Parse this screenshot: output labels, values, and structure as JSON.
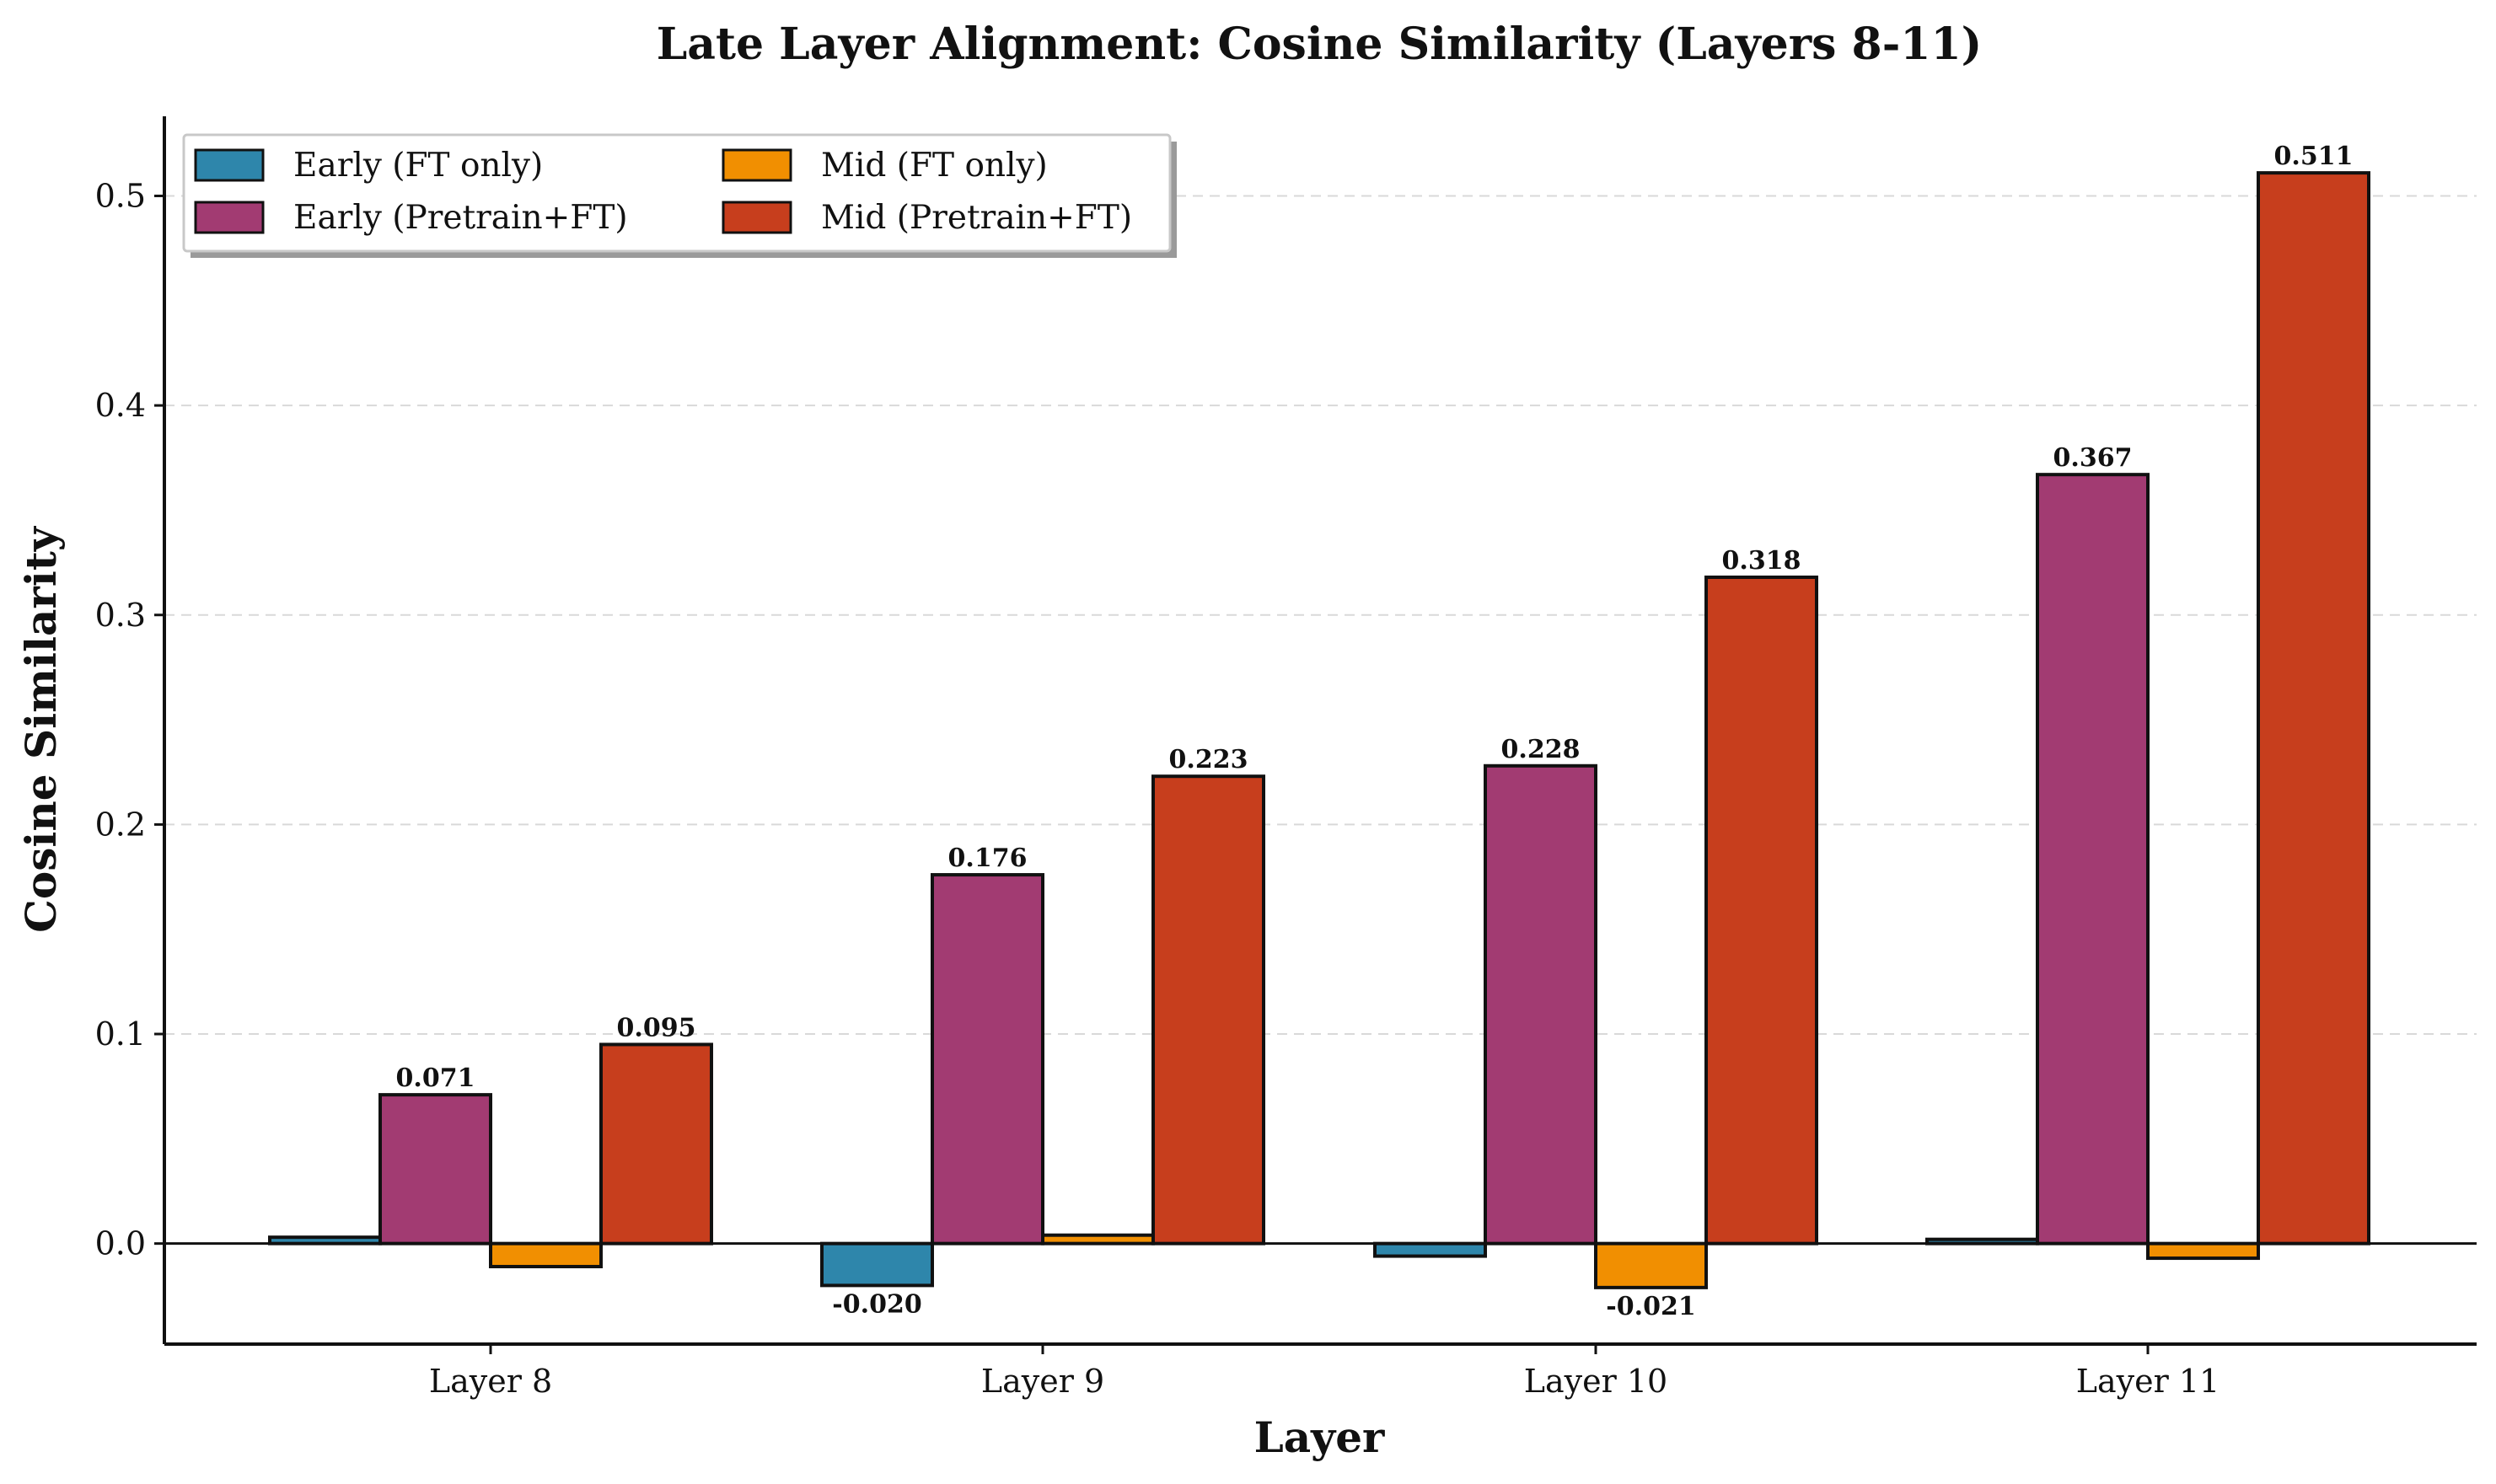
{
  "chart_data": {
    "type": "bar",
    "title": "Late Layer Alignment: Cosine Similarity (Layers 8-11)",
    "xlabel": "Layer",
    "ylabel": "Cosine Similarity",
    "categories": [
      "Layer 8",
      "Layer 9",
      "Layer 10",
      "Layer 11"
    ],
    "ylim": [
      -0.048,
      0.538
    ],
    "yticks": [
      0.0,
      0.1,
      0.2,
      0.3,
      0.4,
      0.5
    ],
    "ytick_labels": [
      "0.0",
      "0.1",
      "0.2",
      "0.3",
      "0.4",
      "0.5"
    ],
    "grid": "y-dashed",
    "legend_position": "top-left",
    "legend_columns": 2,
    "series": [
      {
        "name": "Early (FT only)",
        "color": "#2E86AB",
        "values": [
          0.003,
          -0.02,
          -0.006,
          0.002
        ],
        "labels": [
          "",
          "-0.020",
          "",
          ""
        ]
      },
      {
        "name": "Early (Pretrain+FT)",
        "color": "#A23B72",
        "values": [
          0.071,
          0.176,
          0.228,
          0.367
        ],
        "labels": [
          "0.071",
          "0.176",
          "0.228",
          "0.367"
        ]
      },
      {
        "name": "Mid (FT only)",
        "color": "#F18F01",
        "values": [
          -0.011,
          0.004,
          -0.021,
          -0.007
        ],
        "labels": [
          "",
          "",
          "-0.021",
          ""
        ]
      },
      {
        "name": "Mid (Pretrain+FT)",
        "color": "#C73E1D",
        "values": [
          0.095,
          0.223,
          0.318,
          0.511
        ],
        "labels": [
          "0.095",
          "0.223",
          "0.318",
          "0.511"
        ]
      }
    ]
  }
}
